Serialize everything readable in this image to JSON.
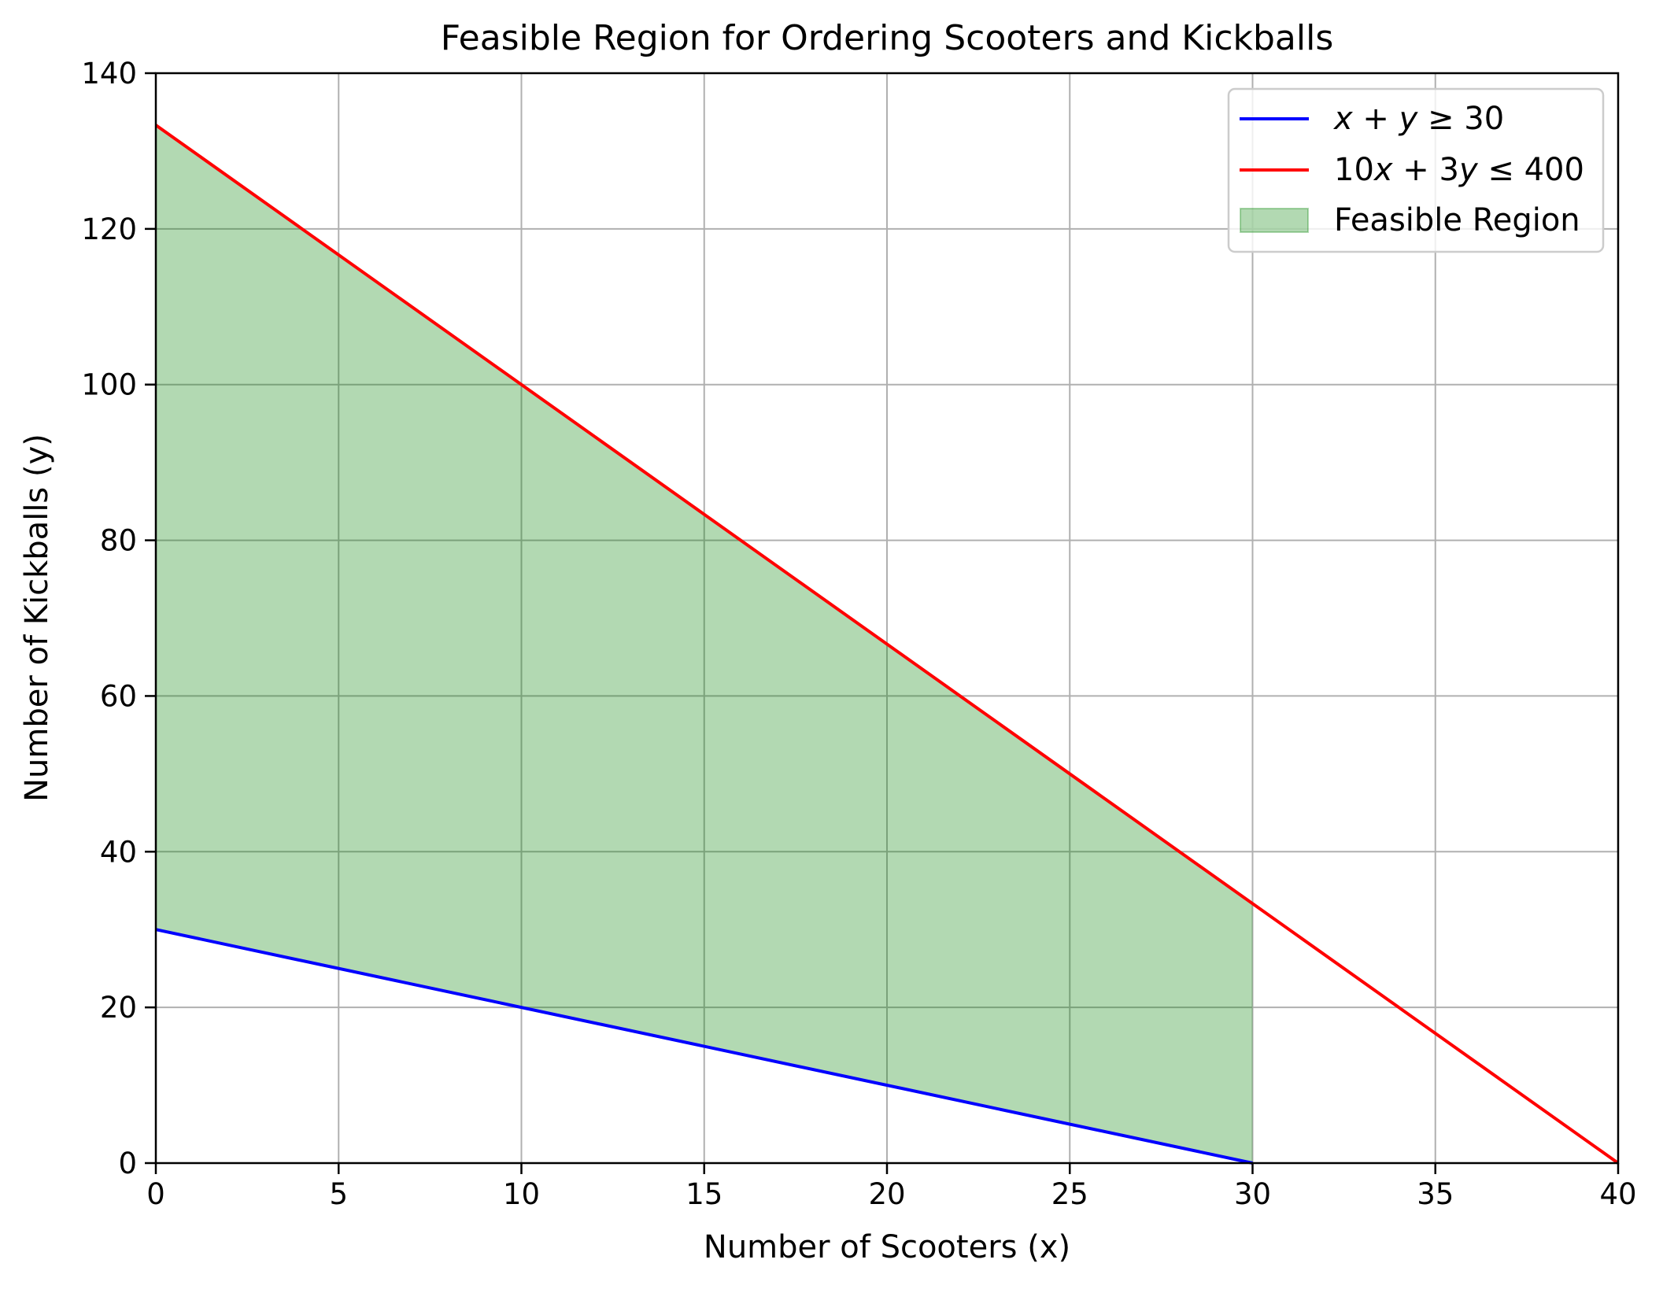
{
  "chart_data": {
    "type": "line",
    "title": "Feasible Region for Ordering Scooters and Kickballs",
    "xlabel": "Number of Scooters (x)",
    "ylabel": "Number of Kickballs (y)",
    "xlim": [
      0,
      40
    ],
    "ylim": [
      0,
      140
    ],
    "xticks": [
      0,
      5,
      10,
      15,
      20,
      25,
      30,
      35,
      40
    ],
    "yticks": [
      0,
      20,
      40,
      60,
      80,
      100,
      120,
      140
    ],
    "grid": true,
    "legend_position": "top-right",
    "series": [
      {
        "name": "x + y ≥ 30",
        "name_parts": [
          "x",
          " + ",
          "y",
          " ≥ 30"
        ],
        "color": "#0000ff",
        "x": [
          0,
          30
        ],
        "y": [
          30,
          0
        ]
      },
      {
        "name": "10x + 3y ≤ 400",
        "name_parts": [
          "10",
          "x",
          " + 3",
          "y",
          " ≤ 400"
        ],
        "color": "#ff0000",
        "x": [
          0,
          40
        ],
        "y": [
          133.33,
          0
        ]
      }
    ],
    "fill": {
      "name": "Feasible Region",
      "color": "#008000",
      "opacity": 0.3,
      "x": [
        0,
        30
      ],
      "y_lower": [
        30,
        0
      ],
      "y_upper": [
        133.33,
        33.33
      ]
    }
  }
}
